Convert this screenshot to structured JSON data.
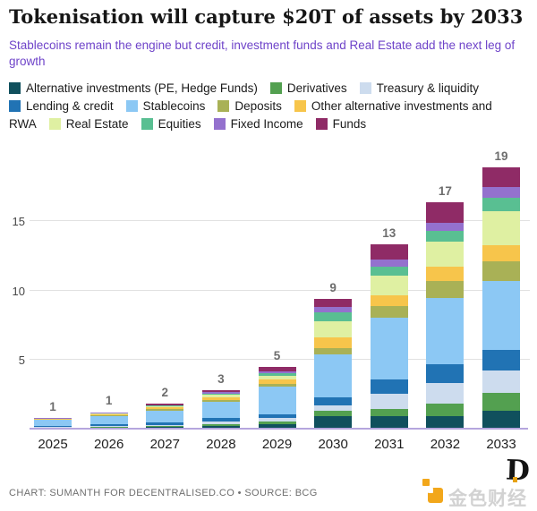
{
  "header": {
    "title": "Tokenisation will capture $20T of assets by 2033",
    "subtitle": "Stablecoins remain the engine but credit, investment funds and Real Estate add the next leg of growth"
  },
  "legend": {
    "items": [
      {
        "label": "Alternative investments (PE, Hedge Funds)",
        "color": "#10505d"
      },
      {
        "label": "Derivatives",
        "color": "#53a050"
      },
      {
        "label": "Treasury & liquidity",
        "color": "#cddcee"
      },
      {
        "label": "Lending & credit",
        "color": "#2173b4"
      },
      {
        "label": "Stablecoins",
        "color": "#8cc8f4"
      },
      {
        "label": "Deposits",
        "color": "#a9b156"
      },
      {
        "label": "Other alternative investments and RWA",
        "color": "#f7c54b"
      },
      {
        "label": "Real Estate",
        "color": "#dff0a2"
      },
      {
        "label": "Equities",
        "color": "#59bf92"
      },
      {
        "label": "Fixed Income",
        "color": "#9471ce"
      },
      {
        "label": "Funds",
        "color": "#8f2b66"
      }
    ]
  },
  "chart_data": {
    "type": "bar",
    "subtype": "stacked",
    "title": "Tokenisation will capture $20T of assets by 2033",
    "xlabel": "",
    "ylabel": "",
    "categories": [
      "2025",
      "2026",
      "2027",
      "2028",
      "2029",
      "2030",
      "2031",
      "2032",
      "2033"
    ],
    "series": [
      {
        "name": "Alternative investments (PE, Hedge Funds)",
        "color": "#10505d",
        "values": [
          0.05,
          0.08,
          0.1,
          0.2,
          0.3,
          0.9,
          0.9,
          0.9,
          1.3
        ]
      },
      {
        "name": "Derivatives",
        "color": "#53a050",
        "values": [
          0.03,
          0.05,
          0.08,
          0.15,
          0.2,
          0.4,
          0.55,
          0.9,
          1.3
        ]
      },
      {
        "name": "Treasury & liquidity",
        "color": "#cddcee",
        "values": [
          0.05,
          0.08,
          0.1,
          0.15,
          0.25,
          0.4,
          1.1,
          1.5,
          1.6
        ]
      },
      {
        "name": "Lending & credit",
        "color": "#2173b4",
        "values": [
          0.05,
          0.1,
          0.15,
          0.25,
          0.3,
          0.55,
          1.0,
          1.35,
          1.5
        ]
      },
      {
        "name": "Stablecoins",
        "color": "#8cc8f4",
        "values": [
          0.45,
          0.6,
          0.9,
          1.2,
          2.0,
          3.15,
          4.45,
          4.8,
          5.0
        ]
      },
      {
        "name": "Deposits",
        "color": "#a9b156",
        "values": [
          0.03,
          0.05,
          0.1,
          0.15,
          0.2,
          0.45,
          0.85,
          1.25,
          1.4
        ]
      },
      {
        "name": "Other alternative investments and RWA",
        "color": "#f7c54b",
        "values": [
          0.05,
          0.08,
          0.1,
          0.2,
          0.3,
          0.75,
          0.8,
          1.0,
          1.2
        ]
      },
      {
        "name": "Real Estate",
        "color": "#dff0a2",
        "values": [
          0.02,
          0.04,
          0.08,
          0.15,
          0.25,
          1.2,
          1.4,
          1.85,
          2.4
        ]
      },
      {
        "name": "Equities",
        "color": "#59bf92",
        "values": [
          0.02,
          0.04,
          0.06,
          0.1,
          0.2,
          0.65,
          0.65,
          0.75,
          1.0
        ]
      },
      {
        "name": "Fixed Income",
        "color": "#9471ce",
        "values": [
          0.02,
          0.03,
          0.05,
          0.1,
          0.15,
          0.35,
          0.55,
          0.6,
          0.75
        ]
      },
      {
        "name": "Funds",
        "color": "#8f2b66",
        "values": [
          0.03,
          0.05,
          0.08,
          0.15,
          0.3,
          0.6,
          1.1,
          1.5,
          1.45
        ]
      }
    ],
    "totals_labels": [
      "1",
      "1",
      "2",
      "3",
      "5",
      "9",
      "13",
      "17",
      "19"
    ],
    "yticks": [
      5,
      10,
      15
    ],
    "ylim": [
      0,
      20
    ],
    "grid": "horizontal",
    "legend_position": "top"
  },
  "footer": {
    "credit": "CHART: SUMANTH FOR DECENTRALISED.CO • SOURCE: BCG"
  },
  "watermark": {
    "text": "金色财经",
    "monogram": "D"
  }
}
